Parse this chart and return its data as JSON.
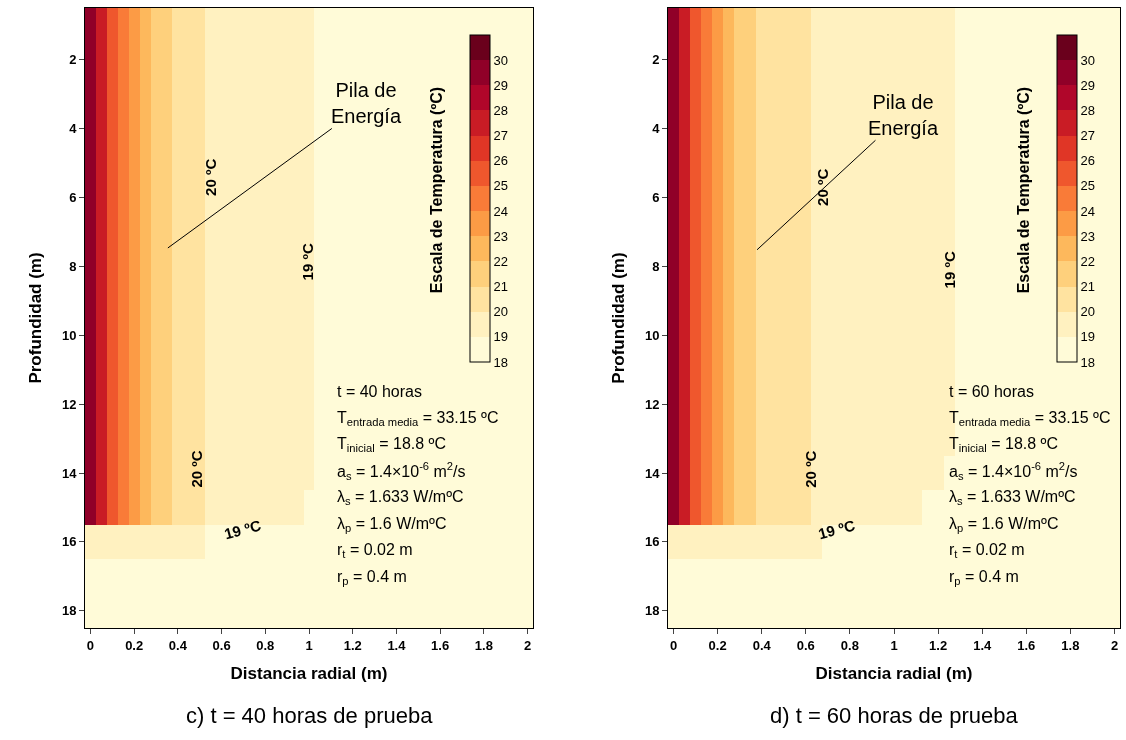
{
  "chart_data": [
    {
      "type": "heatmap",
      "title": "c) t = 40 horas de prueba",
      "xlabel": "Distancia radial (m)",
      "ylabel": "Profundidad (m)",
      "clabel": "Escala de Temperatura (ºC)",
      "categories": [
        "0",
        null,
        null,
        null,
        "0.2",
        null,
        null,
        null,
        "0.4",
        null,
        null,
        null,
        "0.6",
        null,
        null,
        null,
        "0.8",
        null,
        null,
        null,
        "1",
        null,
        null,
        null,
        "1.2",
        null,
        null,
        null,
        "1.4",
        null,
        null,
        null,
        "1.6",
        null,
        null,
        null,
        "1.8",
        null,
        null,
        null,
        "2"
      ],
      "y_categories": [
        null,
        "2",
        null,
        "4",
        null,
        "6",
        null,
        "8",
        null,
        "10",
        null,
        "12",
        null,
        "14",
        null,
        "16",
        null,
        "18"
      ],
      "cells": [
        [
          29.5,
          27.5,
          25.5,
          24.5,
          23.5,
          22.5,
          21.5,
          21.5,
          20.5,
          20.5,
          20.5,
          19.5,
          19.5,
          19.5,
          19.5,
          19.5,
          19.5,
          19.5,
          19.5,
          19.5,
          19.5,
          18.5,
          18.5,
          18.5,
          18.5,
          18.5,
          18.5,
          18.5,
          18.5,
          18.5,
          18.5,
          18.5,
          18.5,
          18.5,
          18.5,
          18.5,
          18.5,
          18.5,
          18.5,
          18.5,
          18.5
        ],
        [
          29.5,
          27.5,
          25.5,
          24.5,
          23.5,
          22.5,
          21.5,
          21.5,
          20.5,
          20.5,
          20.5,
          19.5,
          19.5,
          19.5,
          19.5,
          19.5,
          19.5,
          19.5,
          19.5,
          19.5,
          19.5,
          18.5,
          18.5,
          18.5,
          18.5,
          18.5,
          18.5,
          18.5,
          18.5,
          18.5,
          18.5,
          18.5,
          18.5,
          18.5,
          18.5,
          null,
          null,
          18.5,
          18.5,
          18.5,
          18.5
        ],
        [
          29.5,
          27.5,
          25.5,
          24.5,
          23.5,
          22.5,
          21.5,
          21.5,
          20.5,
          20.5,
          20.5,
          19.5,
          19.5,
          19.5,
          19.5,
          19.5,
          19.5,
          19.5,
          19.5,
          19.5,
          19.5,
          18.5,
          18.5,
          18.5,
          18.5,
          18.5,
          18.5,
          18.5,
          18.5,
          18.5,
          18.5,
          18.5,
          18.5,
          18.5,
          18.5,
          null,
          null,
          18.5,
          18.5,
          18.5,
          18.5
        ],
        [
          29.5,
          27.5,
          25.5,
          24.5,
          23.5,
          22.5,
          21.5,
          21.5,
          20.5,
          20.5,
          20.5,
          19.5,
          19.5,
          19.5,
          19.5,
          19.5,
          19.5,
          19.5,
          19.5,
          19.5,
          19.5,
          18.5,
          18.5,
          18.5,
          18.5,
          18.5,
          18.5,
          18.5,
          18.5,
          18.5,
          18.5,
          18.5,
          18.5,
          18.5,
          18.5,
          null,
          null,
          18.5,
          18.5,
          18.5,
          18.5
        ],
        [
          29.5,
          27.5,
          25.5,
          24.5,
          23.5,
          22.5,
          21.5,
          21.5,
          20.5,
          20.5,
          20.5,
          19.5,
          19.5,
          19.5,
          19.5,
          19.5,
          19.5,
          19.5,
          19.5,
          19.5,
          19.5,
          18.5,
          18.5,
          18.5,
          18.5,
          18.5,
          18.5,
          18.5,
          18.5,
          18.5,
          18.5,
          18.5,
          18.5,
          18.5,
          18.5,
          null,
          null,
          18.5,
          18.5,
          18.5,
          18.5
        ],
        [
          29.5,
          27.5,
          25.5,
          24.5,
          23.5,
          22.5,
          21.5,
          21.5,
          20.5,
          20.5,
          20.5,
          19.5,
          19.5,
          19.5,
          19.5,
          19.5,
          19.5,
          19.5,
          19.5,
          19.5,
          19.5,
          18.5,
          18.5,
          18.5,
          18.5,
          18.5,
          18.5,
          18.5,
          18.5,
          18.5,
          18.5,
          18.5,
          18.5,
          18.5,
          18.5,
          null,
          null,
          18.5,
          18.5,
          18.5,
          18.5
        ],
        [
          29.5,
          27.5,
          25.5,
          24.5,
          23.5,
          22.5,
          21.5,
          21.5,
          20.5,
          20.5,
          20.5,
          19.5,
          19.5,
          19.5,
          19.5,
          19.5,
          19.5,
          19.5,
          19.5,
          19.5,
          19.5,
          18.5,
          18.5,
          18.5,
          18.5,
          18.5,
          18.5,
          18.5,
          18.5,
          18.5,
          18.5,
          18.5,
          18.5,
          18.5,
          18.5,
          null,
          null,
          18.5,
          18.5,
          18.5,
          18.5
        ],
        [
          29.5,
          27.5,
          25.5,
          24.5,
          23.5,
          22.5,
          21.5,
          21.5,
          20.5,
          20.5,
          20.5,
          19.5,
          19.5,
          19.5,
          19.5,
          19.5,
          19.5,
          19.5,
          19.5,
          19.5,
          19.5,
          18.5,
          18.5,
          18.5,
          18.5,
          18.5,
          18.5,
          18.5,
          18.5,
          18.5,
          18.5,
          18.5,
          18.5,
          18.5,
          18.5,
          null,
          null,
          18.5,
          18.5,
          18.5,
          18.5
        ],
        [
          29.5,
          27.5,
          25.5,
          24.5,
          23.5,
          22.5,
          21.5,
          21.5,
          20.5,
          20.5,
          20.5,
          19.5,
          19.5,
          19.5,
          19.5,
          19.5,
          19.5,
          19.5,
          19.5,
          19.5,
          19.5,
          18.5,
          18.5,
          18.5,
          18.5,
          18.5,
          18.5,
          18.5,
          18.5,
          18.5,
          18.5,
          18.5,
          18.5,
          18.5,
          18.5,
          null,
          null,
          18.5,
          18.5,
          18.5,
          18.5
        ],
        [
          29.5,
          27.5,
          25.5,
          24.5,
          23.5,
          22.5,
          21.5,
          21.5,
          20.5,
          20.5,
          20.5,
          19.5,
          19.5,
          19.5,
          19.5,
          19.5,
          19.5,
          19.5,
          19.5,
          19.5,
          19.5,
          18.5,
          18.5,
          18.5,
          18.5,
          18.5,
          18.5,
          18.5,
          18.5,
          18.5,
          18.5,
          18.5,
          18.5,
          18.5,
          18.5,
          null,
          null,
          18.5,
          18.5,
          18.5,
          18.5
        ],
        [
          29.5,
          27.5,
          25.5,
          24.5,
          23.5,
          22.5,
          21.5,
          21.5,
          20.5,
          20.5,
          20.5,
          19.5,
          19.5,
          19.5,
          19.5,
          19.5,
          19.5,
          19.5,
          19.5,
          19.5,
          19.5,
          18.5,
          18.5,
          18.5,
          18.5,
          18.5,
          18.5,
          18.5,
          18.5,
          18.5,
          18.5,
          18.5,
          18.5,
          18.5,
          18.5,
          18.5,
          18.5,
          18.5,
          18.5,
          18.5,
          18.5
        ],
        [
          29.5,
          27.5,
          25.5,
          24.5,
          23.5,
          22.5,
          21.5,
          21.5,
          20.5,
          20.5,
          20.5,
          19.5,
          19.5,
          19.5,
          19.5,
          19.5,
          19.5,
          19.5,
          19.5,
          19.5,
          19.5,
          18.5,
          18.5,
          18.5,
          18.5,
          18.5,
          18.5,
          18.5,
          18.5,
          18.5,
          18.5,
          18.5,
          18.5,
          18.5,
          18.5,
          18.5,
          18.5,
          18.5,
          18.5,
          18.5,
          18.5
        ],
        [
          29.5,
          27.5,
          25.5,
          24.5,
          23.5,
          22.5,
          21.5,
          21.5,
          20.5,
          20.5,
          20.5,
          19.5,
          19.5,
          19.5,
          19.5,
          19.5,
          19.5,
          19.5,
          19.5,
          19.5,
          19.5,
          18.5,
          18.5,
          18.5,
          18.5,
          18.5,
          18.5,
          18.5,
          18.5,
          18.5,
          18.5,
          18.5,
          18.5,
          18.5,
          18.5,
          18.5,
          18.5,
          18.5,
          18.5,
          18.5,
          18.5
        ],
        [
          29.5,
          27.5,
          25.5,
          24.5,
          23.5,
          22.5,
          21.5,
          21.5,
          20.5,
          20.5,
          20.5,
          19.5,
          19.5,
          19.5,
          19.5,
          19.5,
          19.5,
          19.5,
          19.5,
          19.5,
          19.5,
          18.5,
          18.5,
          18.5,
          18.5,
          18.5,
          18.5,
          18.5,
          18.5,
          18.5,
          18.5,
          18.5,
          18.5,
          18.5,
          18.5,
          18.5,
          18.5,
          18.5,
          18.5,
          18.5,
          18.5
        ],
        [
          29.5,
          27.5,
          25.5,
          24.5,
          23.5,
          22.5,
          21.5,
          21.5,
          20.5,
          20.5,
          20.5,
          19.5,
          19.5,
          19.5,
          19.5,
          19.5,
          19.5,
          19.5,
          19.5,
          19.5,
          18.5,
          18.5,
          18.5,
          18.5,
          18.5,
          18.5,
          18.5,
          18.5,
          18.5,
          18.5,
          18.5,
          18.5,
          18.5,
          18.5,
          18.5,
          18.5,
          18.5,
          18.5,
          18.5,
          18.5,
          18.5
        ],
        [
          19.5,
          19.5,
          19.5,
          19.5,
          19.5,
          19.5,
          19.5,
          19.5,
          19.5,
          19.5,
          19.5,
          18.5,
          18.5,
          18.5,
          18.5,
          18.5,
          18.5,
          18.5,
          18.5,
          18.5,
          18.5,
          18.5,
          18.5,
          18.5,
          18.5,
          18.5,
          18.5,
          18.5,
          18.5,
          18.5,
          18.5,
          18.5,
          18.5,
          18.5,
          18.5,
          18.5,
          18.5,
          18.5,
          18.5,
          18.5,
          18.5
        ],
        [
          18.5,
          18.5,
          18.5,
          18.5,
          18.5,
          18.5,
          18.5,
          18.5,
          18.5,
          18.5,
          18.5,
          18.5,
          18.5,
          18.5,
          18.5,
          18.5,
          18.5,
          18.5,
          18.5,
          18.5,
          18.5,
          18.5,
          18.5,
          18.5,
          18.5,
          18.5,
          18.5,
          18.5,
          18.5,
          18.5,
          18.5,
          18.5,
          18.5,
          18.5,
          18.5,
          18.5,
          18.5,
          18.5,
          18.5,
          18.5,
          18.5
        ],
        [
          18.5,
          18.5,
          18.5,
          18.5,
          18.5,
          18.5,
          18.5,
          18.5,
          18.5,
          18.5,
          18.5,
          18.5,
          18.5,
          18.5,
          18.5,
          18.5,
          18.5,
          18.5,
          18.5,
          18.5,
          18.5,
          18.5,
          18.5,
          18.5,
          18.5,
          18.5,
          18.5,
          18.5,
          18.5,
          18.5,
          18.5,
          18.5,
          18.5,
          18.5,
          18.5,
          18.5,
          18.5,
          18.5,
          18.5,
          18.5,
          18.5
        ]
      ],
      "clim": [
        18,
        31
      ],
      "cticks": [
        18,
        19,
        20,
        21,
        22,
        23,
        24,
        25,
        26,
        27,
        28,
        29,
        30
      ],
      "annotations": [
        "Pila de\nEnergía",
        "20 ºC",
        "20 ºC",
        "19 ºC",
        "19 ºC",
        "t = 40 horas",
        "T$_{entrada media}$ = 33.15 ºC",
        "T$_{inicial}$ = 18.8 ºC",
        "a$_{s}$ = 1.4×10$^{-6}$ m$^{2}$/s",
        "λ$_{s}$ = 1.633 W/mºC",
        "λ$_{p}$ = 1.6 W/mºC",
        "r$_{t}$ = 0.02 m",
        "r$_{p}$ = 0.4 m"
      ]
    },
    {
      "type": "heatmap",
      "title": "d) t = 60 horas de prueba",
      "xlabel": "Distancia radial (m)",
      "ylabel": "Profundidad (m)",
      "clabel": "Escala de Temperatura (ºC)",
      "categories": [
        "0",
        null,
        null,
        null,
        "0.2",
        null,
        null,
        null,
        "0.4",
        null,
        null,
        null,
        "0.6",
        null,
        null,
        null,
        "0.8",
        null,
        null,
        null,
        "1",
        null,
        null,
        null,
        "1.2",
        null,
        null,
        null,
        "1.4",
        null,
        null,
        null,
        "1.6",
        null,
        null,
        null,
        "1.8",
        null,
        null,
        null,
        "2"
      ],
      "y_categories": [
        null,
        "2",
        null,
        "4",
        null,
        "6",
        null,
        "8",
        null,
        "10",
        null,
        "12",
        null,
        "14",
        null,
        "16",
        null,
        "18"
      ],
      "cells": [
        [
          29.5,
          27.5,
          25.5,
          24.5,
          23.5,
          22.5,
          21.5,
          21.5,
          20.5,
          20.5,
          20.5,
          20.5,
          20.5,
          19.5,
          19.5,
          19.5,
          19.5,
          19.5,
          19.5,
          19.5,
          19.5,
          19.5,
          19.5,
          19.5,
          19.5,
          19.5,
          18.5,
          18.5,
          18.5,
          18.5,
          18.5,
          18.5,
          18.5,
          18.5,
          18.5,
          18.5,
          18.5,
          18.5,
          18.5,
          18.5,
          18.5
        ],
        [
          29.5,
          27.5,
          25.5,
          24.5,
          23.5,
          22.5,
          21.5,
          21.5,
          20.5,
          20.5,
          20.5,
          20.5,
          20.5,
          19.5,
          19.5,
          19.5,
          19.5,
          19.5,
          19.5,
          19.5,
          19.5,
          19.5,
          19.5,
          19.5,
          19.5,
          19.5,
          18.5,
          18.5,
          18.5,
          18.5,
          18.5,
          18.5,
          18.5,
          18.5,
          18.5,
          null,
          null,
          18.5,
          18.5,
          18.5,
          18.5
        ],
        [
          29.5,
          27.5,
          25.5,
          24.5,
          23.5,
          22.5,
          21.5,
          21.5,
          20.5,
          20.5,
          20.5,
          20.5,
          20.5,
          19.5,
          19.5,
          19.5,
          19.5,
          19.5,
          19.5,
          19.5,
          19.5,
          19.5,
          19.5,
          19.5,
          19.5,
          19.5,
          18.5,
          18.5,
          18.5,
          18.5,
          18.5,
          18.5,
          18.5,
          18.5,
          18.5,
          null,
          null,
          18.5,
          18.5,
          18.5,
          18.5
        ],
        [
          29.5,
          27.5,
          25.5,
          24.5,
          23.5,
          22.5,
          21.5,
          21.5,
          20.5,
          20.5,
          20.5,
          20.5,
          20.5,
          19.5,
          19.5,
          19.5,
          19.5,
          19.5,
          19.5,
          19.5,
          19.5,
          19.5,
          19.5,
          19.5,
          19.5,
          19.5,
          18.5,
          18.5,
          18.5,
          18.5,
          18.5,
          18.5,
          18.5,
          18.5,
          18.5,
          null,
          null,
          18.5,
          18.5,
          18.5,
          18.5
        ],
        [
          29.5,
          27.5,
          25.5,
          24.5,
          23.5,
          22.5,
          21.5,
          21.5,
          20.5,
          20.5,
          20.5,
          20.5,
          20.5,
          19.5,
          19.5,
          19.5,
          19.5,
          19.5,
          19.5,
          19.5,
          19.5,
          19.5,
          19.5,
          19.5,
          19.5,
          19.5,
          18.5,
          18.5,
          18.5,
          18.5,
          18.5,
          18.5,
          18.5,
          18.5,
          18.5,
          null,
          null,
          18.5,
          18.5,
          18.5,
          18.5
        ],
        [
          29.5,
          27.5,
          25.5,
          24.5,
          23.5,
          22.5,
          21.5,
          21.5,
          20.5,
          20.5,
          20.5,
          20.5,
          20.5,
          19.5,
          19.5,
          19.5,
          19.5,
          19.5,
          19.5,
          19.5,
          19.5,
          19.5,
          19.5,
          19.5,
          19.5,
          19.5,
          18.5,
          18.5,
          18.5,
          18.5,
          18.5,
          18.5,
          18.5,
          18.5,
          18.5,
          null,
          null,
          18.5,
          18.5,
          18.5,
          18.5
        ],
        [
          29.5,
          27.5,
          25.5,
          24.5,
          23.5,
          22.5,
          21.5,
          21.5,
          20.5,
          20.5,
          20.5,
          20.5,
          20.5,
          19.5,
          19.5,
          19.5,
          19.5,
          19.5,
          19.5,
          19.5,
          19.5,
          19.5,
          19.5,
          19.5,
          19.5,
          19.5,
          18.5,
          18.5,
          18.5,
          18.5,
          18.5,
          18.5,
          18.5,
          18.5,
          18.5,
          null,
          null,
          18.5,
          18.5,
          18.5,
          18.5
        ],
        [
          29.5,
          27.5,
          25.5,
          24.5,
          23.5,
          22.5,
          21.5,
          21.5,
          20.5,
          20.5,
          20.5,
          20.5,
          20.5,
          19.5,
          19.5,
          19.5,
          19.5,
          19.5,
          19.5,
          19.5,
          19.5,
          19.5,
          19.5,
          19.5,
          19.5,
          19.5,
          18.5,
          18.5,
          18.5,
          18.5,
          18.5,
          18.5,
          18.5,
          18.5,
          18.5,
          null,
          null,
          18.5,
          18.5,
          18.5,
          18.5
        ],
        [
          29.5,
          27.5,
          25.5,
          24.5,
          23.5,
          22.5,
          21.5,
          21.5,
          20.5,
          20.5,
          20.5,
          20.5,
          20.5,
          19.5,
          19.5,
          19.5,
          19.5,
          19.5,
          19.5,
          19.5,
          19.5,
          19.5,
          19.5,
          19.5,
          19.5,
          19.5,
          18.5,
          18.5,
          18.5,
          18.5,
          18.5,
          18.5,
          18.5,
          18.5,
          18.5,
          null,
          null,
          18.5,
          18.5,
          18.5,
          18.5
        ],
        [
          29.5,
          27.5,
          25.5,
          24.5,
          23.5,
          22.5,
          21.5,
          21.5,
          20.5,
          20.5,
          20.5,
          20.5,
          20.5,
          19.5,
          19.5,
          19.5,
          19.5,
          19.5,
          19.5,
          19.5,
          19.5,
          19.5,
          19.5,
          19.5,
          19.5,
          19.5,
          18.5,
          18.5,
          18.5,
          18.5,
          18.5,
          18.5,
          18.5,
          18.5,
          18.5,
          null,
          null,
          18.5,
          18.5,
          18.5,
          18.5
        ],
        [
          29.5,
          27.5,
          25.5,
          24.5,
          23.5,
          22.5,
          21.5,
          21.5,
          20.5,
          20.5,
          20.5,
          20.5,
          20.5,
          19.5,
          19.5,
          19.5,
          19.5,
          19.5,
          19.5,
          19.5,
          19.5,
          19.5,
          19.5,
          19.5,
          19.5,
          19.5,
          18.5,
          18.5,
          18.5,
          18.5,
          18.5,
          18.5,
          18.5,
          18.5,
          18.5,
          18.5,
          18.5,
          18.5,
          18.5,
          18.5,
          18.5
        ],
        [
          29.5,
          27.5,
          25.5,
          24.5,
          23.5,
          22.5,
          21.5,
          21.5,
          20.5,
          20.5,
          20.5,
          20.5,
          20.5,
          19.5,
          19.5,
          19.5,
          19.5,
          19.5,
          19.5,
          19.5,
          19.5,
          19.5,
          19.5,
          19.5,
          19.5,
          19.5,
          18.5,
          18.5,
          18.5,
          18.5,
          18.5,
          18.5,
          18.5,
          18.5,
          18.5,
          18.5,
          18.5,
          18.5,
          18.5,
          18.5,
          18.5
        ],
        [
          29.5,
          27.5,
          25.5,
          24.5,
          23.5,
          22.5,
          21.5,
          21.5,
          20.5,
          20.5,
          20.5,
          20.5,
          20.5,
          19.5,
          19.5,
          19.5,
          19.5,
          19.5,
          19.5,
          19.5,
          19.5,
          19.5,
          19.5,
          19.5,
          19.5,
          19.5,
          18.5,
          18.5,
          18.5,
          18.5,
          18.5,
          18.5,
          18.5,
          18.5,
          18.5,
          18.5,
          18.5,
          18.5,
          18.5,
          18.5,
          18.5
        ],
        [
          29.5,
          27.5,
          25.5,
          24.5,
          23.5,
          22.5,
          21.5,
          21.5,
          20.5,
          20.5,
          20.5,
          20.5,
          20.5,
          19.5,
          19.5,
          19.5,
          19.5,
          19.5,
          19.5,
          19.5,
          19.5,
          19.5,
          19.5,
          19.5,
          19.5,
          18.5,
          18.5,
          18.5,
          18.5,
          18.5,
          18.5,
          18.5,
          18.5,
          18.5,
          18.5,
          18.5,
          18.5,
          18.5,
          18.5,
          18.5,
          18.5
        ],
        [
          29.5,
          27.5,
          25.5,
          24.5,
          23.5,
          22.5,
          21.5,
          21.5,
          20.5,
          20.5,
          20.5,
          20.5,
          20.5,
          19.5,
          19.5,
          19.5,
          19.5,
          19.5,
          19.5,
          19.5,
          19.5,
          19.5,
          19.5,
          18.5,
          18.5,
          18.5,
          18.5,
          18.5,
          18.5,
          18.5,
          18.5,
          18.5,
          18.5,
          18.5,
          18.5,
          18.5,
          18.5,
          18.5,
          18.5,
          18.5,
          18.5
        ],
        [
          19.5,
          19.5,
          19.5,
          19.5,
          19.5,
          19.5,
          19.5,
          19.5,
          19.5,
          19.5,
          19.5,
          19.5,
          19.5,
          19.5,
          18.5,
          18.5,
          18.5,
          18.5,
          18.5,
          18.5,
          18.5,
          18.5,
          18.5,
          18.5,
          18.5,
          18.5,
          18.5,
          18.5,
          18.5,
          18.5,
          18.5,
          18.5,
          18.5,
          18.5,
          18.5,
          18.5,
          18.5,
          18.5,
          18.5,
          18.5,
          18.5
        ],
        [
          18.5,
          18.5,
          18.5,
          18.5,
          18.5,
          18.5,
          18.5,
          18.5,
          18.5,
          18.5,
          18.5,
          18.5,
          18.5,
          18.5,
          18.5,
          18.5,
          18.5,
          18.5,
          18.5,
          18.5,
          18.5,
          18.5,
          18.5,
          18.5,
          18.5,
          18.5,
          18.5,
          18.5,
          18.5,
          18.5,
          18.5,
          18.5,
          18.5,
          18.5,
          18.5,
          18.5,
          18.5,
          18.5,
          18.5,
          18.5,
          18.5
        ],
        [
          18.5,
          18.5,
          18.5,
          18.5,
          18.5,
          18.5,
          18.5,
          18.5,
          18.5,
          18.5,
          18.5,
          18.5,
          18.5,
          18.5,
          18.5,
          18.5,
          18.5,
          18.5,
          18.5,
          18.5,
          18.5,
          18.5,
          18.5,
          18.5,
          18.5,
          18.5,
          18.5,
          18.5,
          18.5,
          18.5,
          18.5,
          18.5,
          18.5,
          18.5,
          18.5,
          18.5,
          18.5,
          18.5,
          18.5,
          18.5,
          18.5
        ]
      ],
      "clim": [
        18,
        31
      ],
      "cticks": [
        18,
        19,
        20,
        21,
        22,
        23,
        24,
        25,
        26,
        27,
        28,
        29,
        30
      ],
      "annotations": [
        "Pila de\nEnergía",
        "20 ºC",
        "20 ºC",
        "19 ºC",
        "19 ºC",
        "t = 60 horas",
        "T$_{entrada media}$ = 33.15 ºC",
        "T$_{inicial}$ = 18.8 ºC",
        "a$_{s}$ = 1.4×10$^{-6}$ m$^{2}$/s",
        "λ$_{s}$ = 1.633 W/mºC",
        "λ$_{p}$ = 1.6 W/mºC",
        "r$_{t}$ = 0.02 m",
        "r$_{p}$ = 0.4 m"
      ]
    }
  ]
}
